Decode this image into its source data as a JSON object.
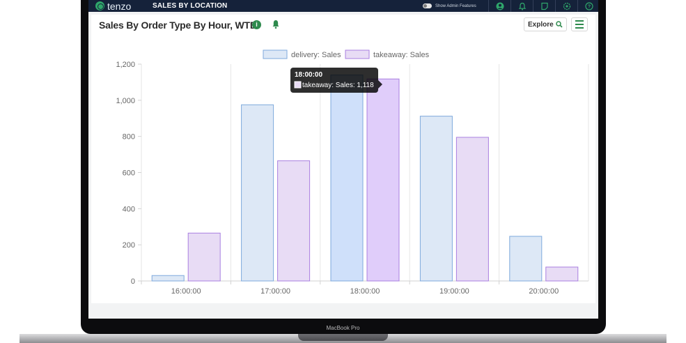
{
  "app": {
    "brand": "tenzo",
    "nav_title": "SALES BY LOCATION",
    "admin_label": "Show Admin Features"
  },
  "topbar_icons": [
    "user-icon",
    "notifications-icon",
    "notes-icon",
    "settings-icon",
    "help-icon"
  ],
  "card": {
    "title": "Sales By Order Type By Hour, WTD",
    "explore_label": "Explore"
  },
  "colors": {
    "topbar": "#15223a",
    "accent": "#2e8a4d",
    "delivery_fill": "#dde8f6",
    "delivery_stroke": "#7ea9dc",
    "takeaway_fill": "#e8dcf5",
    "takeaway_stroke": "#a97fe0"
  },
  "device": {
    "label": "MacBook Pro"
  },
  "chart_data": {
    "type": "bar",
    "categories": [
      "16:00:00",
      "17:00:00",
      "18:00:00",
      "19:00:00",
      "20:00:00"
    ],
    "series": [
      {
        "name": "delivery: Sales",
        "values": [
          30,
          975,
          1140,
          912,
          247
        ]
      },
      {
        "name": "takeaway: Sales",
        "values": [
          265,
          665,
          1118,
          795,
          77
        ]
      }
    ],
    "ylim": [
      0,
      1200
    ],
    "yticks": [
      0,
      200,
      400,
      600,
      800,
      1000,
      1200
    ],
    "ytick_labels": [
      "0",
      "200",
      "400",
      "600",
      "800",
      "1,000",
      "1,200"
    ],
    "grid": "vertical",
    "legend": "top-center",
    "tooltip": {
      "title": "18:00:00",
      "text": "takeaway: Sales: 1,118"
    }
  }
}
